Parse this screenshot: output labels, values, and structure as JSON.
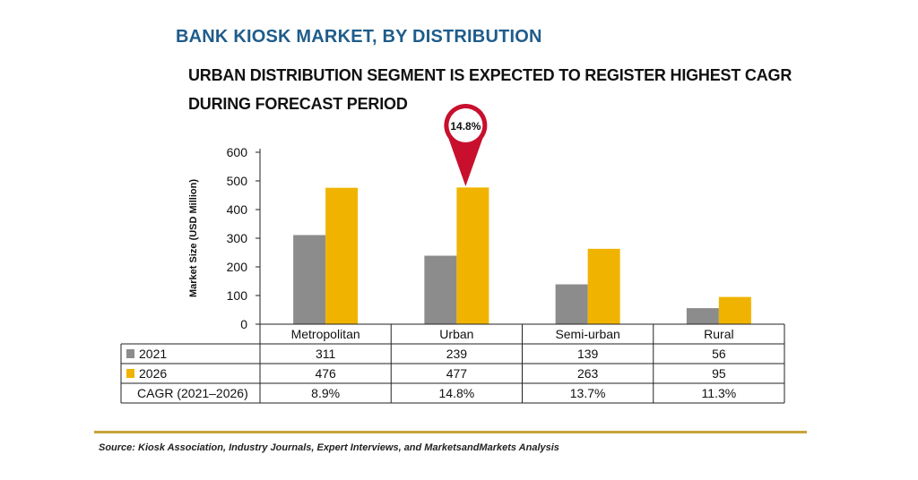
{
  "title": "BANK KIOSK MARKET, BY DISTRIBUTION",
  "subtitle_line1": "URBAN DISTRIBUTION SEGMENT IS EXPECTED TO REGISTER HIGHEST CAGR",
  "subtitle_line2": "DURING FORECAST PERIOD",
  "source": "Source: Kiosk Association, Industry Journals, Expert Interviews, and MarketsandMarkets Analysis",
  "callout": "14.8%",
  "colors": {
    "s2021": "#8c8c8c",
    "s2026": "#f0b400",
    "pin": "#c8102e",
    "title": "#1f5c8b",
    "rule": "#c8a43a"
  },
  "table": {
    "row_labels": [
      "2021",
      "2026",
      "CAGR (2021–2026)"
    ],
    "cagr": [
      "8.9%",
      "14.8%",
      "13.7%",
      "11.3%"
    ]
  },
  "chart_data": {
    "type": "bar",
    "categories": [
      "Metropolitan",
      "Urban",
      "Semi-urban",
      "Rural"
    ],
    "series": [
      {
        "name": "2021",
        "values": [
          311,
          239,
          139,
          56
        ]
      },
      {
        "name": "2026",
        "values": [
          476,
          477,
          263,
          95
        ]
      }
    ],
    "ylabel": "Market Size (USD Million)",
    "ylim": [
      0,
      600
    ],
    "yticks": [
      0,
      100,
      200,
      300,
      400,
      500,
      600
    ],
    "grid": false,
    "legend": "table-rows"
  }
}
